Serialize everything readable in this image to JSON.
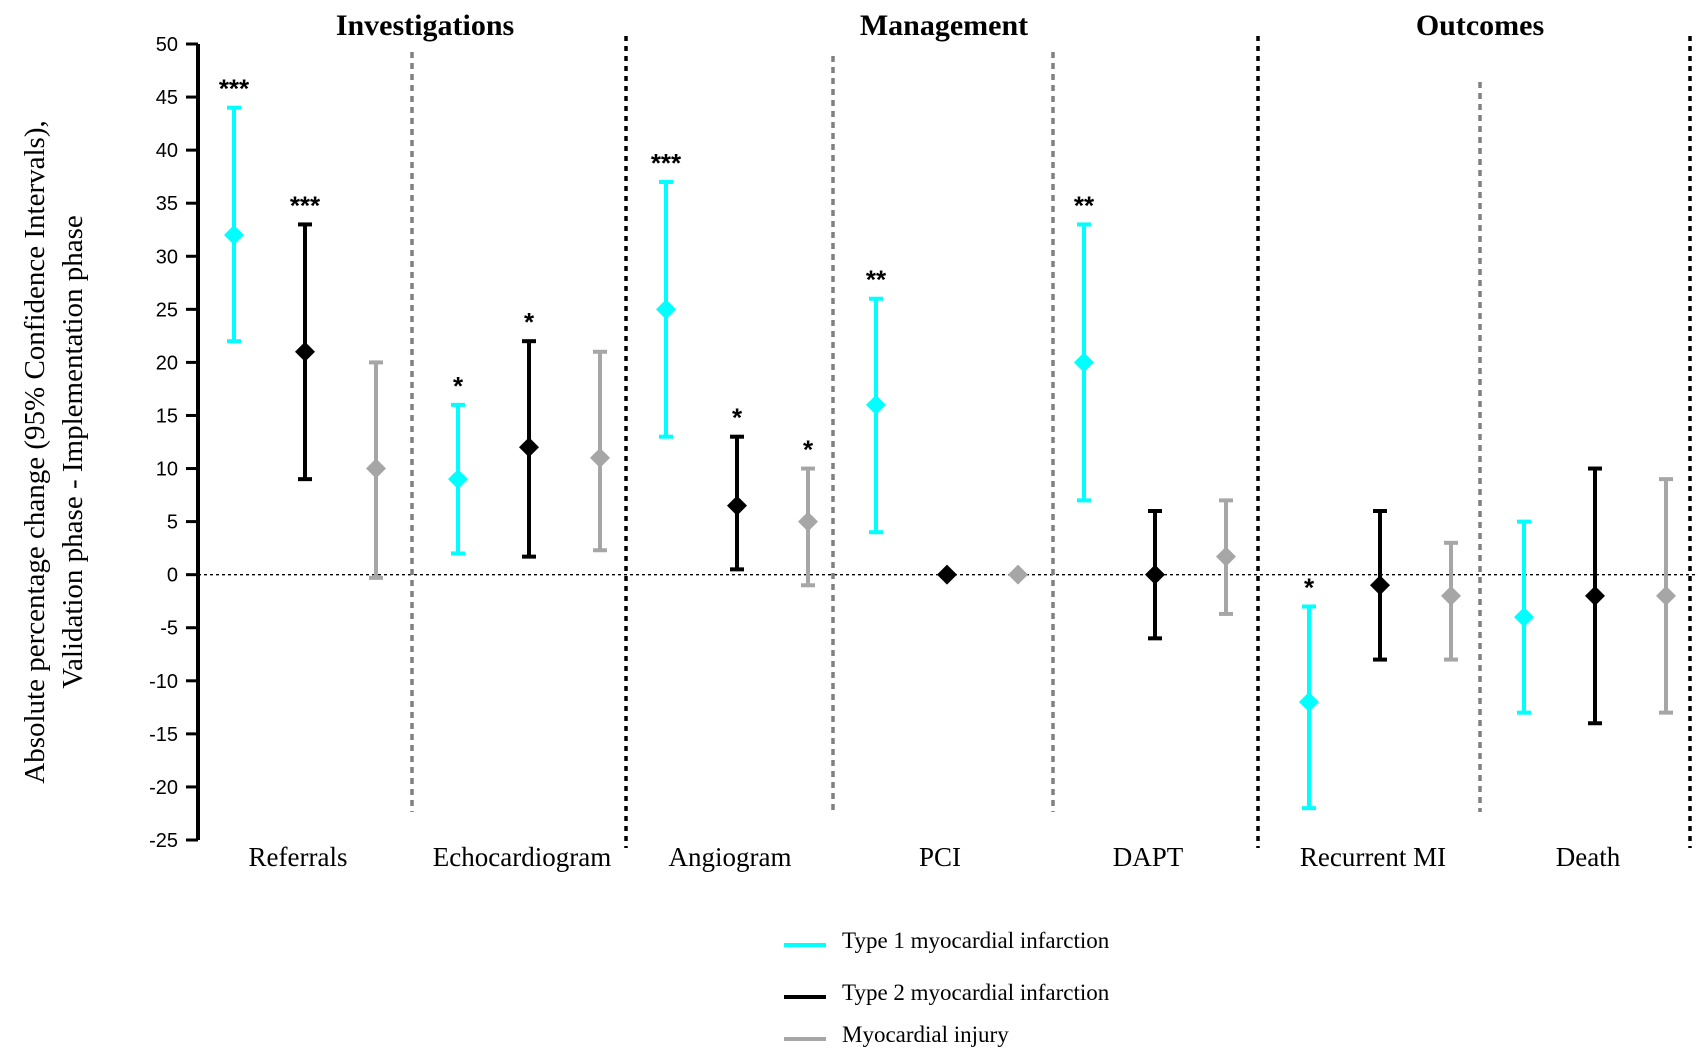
{
  "chart_data": {
    "type": "scatter",
    "title": "",
    "ylabel_lines": [
      "Absolute percentage change (95% Confidence Intervals),",
      "Validation phase - Implementation phase"
    ],
    "ylim": [
      -25,
      50
    ],
    "yticks": [
      50,
      45,
      40,
      35,
      30,
      25,
      20,
      15,
      10,
      5,
      0,
      -5,
      -10,
      -15,
      -20,
      -25
    ],
    "reference_line": 0,
    "sections": [
      {
        "label": "Investigations",
        "categories": [
          "Referrals",
          "Echocardiogram"
        ]
      },
      {
        "label": "Management",
        "categories": [
          "Angiogram",
          "PCI",
          "DAPT"
        ]
      },
      {
        "label": "Outcomes",
        "categories": [
          "Recurrent MI",
          "Death"
        ]
      }
    ],
    "categories": [
      "Referrals",
      "Echocardiogram",
      "Angiogram",
      "PCI",
      "DAPT",
      "Recurrent MI",
      "Death"
    ],
    "colors": {
      "type1": "#00ffff",
      "type2": "#000000",
      "injury": "#a6a6a6"
    },
    "series": [
      {
        "name": "Type 1 myocardial infarction",
        "color_key": "type1",
        "points": [
          {
            "category": "Referrals",
            "value": 32,
            "lo": 22,
            "hi": 44,
            "sig": "***"
          },
          {
            "category": "Echocardiogram",
            "value": 9,
            "lo": 2,
            "hi": 16,
            "sig": "*"
          },
          {
            "category": "Angiogram",
            "value": 25,
            "lo": 13,
            "hi": 37,
            "sig": "***"
          },
          {
            "category": "PCI",
            "value": 16,
            "lo": 4,
            "hi": 26,
            "sig": "**"
          },
          {
            "category": "DAPT",
            "value": 20,
            "lo": 7,
            "hi": 33,
            "sig": "**"
          },
          {
            "category": "Recurrent MI",
            "value": -12,
            "lo": -22,
            "hi": -3,
            "sig": "*"
          },
          {
            "category": "Death",
            "value": -4,
            "lo": -13,
            "hi": 5,
            "sig": ""
          }
        ]
      },
      {
        "name": "Type 2 myocardial infarction",
        "color_key": "type2",
        "points": [
          {
            "category": "Referrals",
            "value": 21,
            "lo": 9,
            "hi": 33,
            "sig": "***"
          },
          {
            "category": "Echocardiogram",
            "value": 12,
            "lo": 1.7,
            "hi": 22,
            "sig": "*"
          },
          {
            "category": "Angiogram",
            "value": 6.5,
            "lo": 0.5,
            "hi": 13,
            "sig": "*"
          },
          {
            "category": "PCI",
            "value": 0,
            "lo": 0,
            "hi": 0,
            "sig": ""
          },
          {
            "category": "DAPT",
            "value": 0,
            "lo": -6,
            "hi": 6,
            "sig": ""
          },
          {
            "category": "Recurrent MI",
            "value": -1,
            "lo": -8,
            "hi": 6,
            "sig": ""
          },
          {
            "category": "Death",
            "value": -2,
            "lo": -14,
            "hi": 10,
            "sig": ""
          }
        ]
      },
      {
        "name": "Myocardial injury",
        "color_key": "injury",
        "points": [
          {
            "category": "Referrals",
            "value": 10,
            "lo": -0.3,
            "hi": 20,
            "sig": ""
          },
          {
            "category": "Echocardiogram",
            "value": 11,
            "lo": 2.3,
            "hi": 21,
            "sig": ""
          },
          {
            "category": "Angiogram",
            "value": 5,
            "lo": -1,
            "hi": 10,
            "sig": "*"
          },
          {
            "category": "PCI",
            "value": 0,
            "lo": 0,
            "hi": 0,
            "sig": ""
          },
          {
            "category": "DAPT",
            "value": 1.7,
            "lo": -3.7,
            "hi": 7,
            "sig": ""
          },
          {
            "category": "Recurrent MI",
            "value": -2,
            "lo": -8,
            "hi": 3,
            "sig": ""
          },
          {
            "category": "Death",
            "value": -2,
            "lo": -13,
            "hi": 9,
            "sig": ""
          }
        ]
      }
    ],
    "legend": {
      "position": "bottom-center",
      "entries": [
        "Type 1 myocardial infarction",
        "Type 2 myocardial infarction",
        "Myocardial injury"
      ]
    },
    "grid": false
  }
}
